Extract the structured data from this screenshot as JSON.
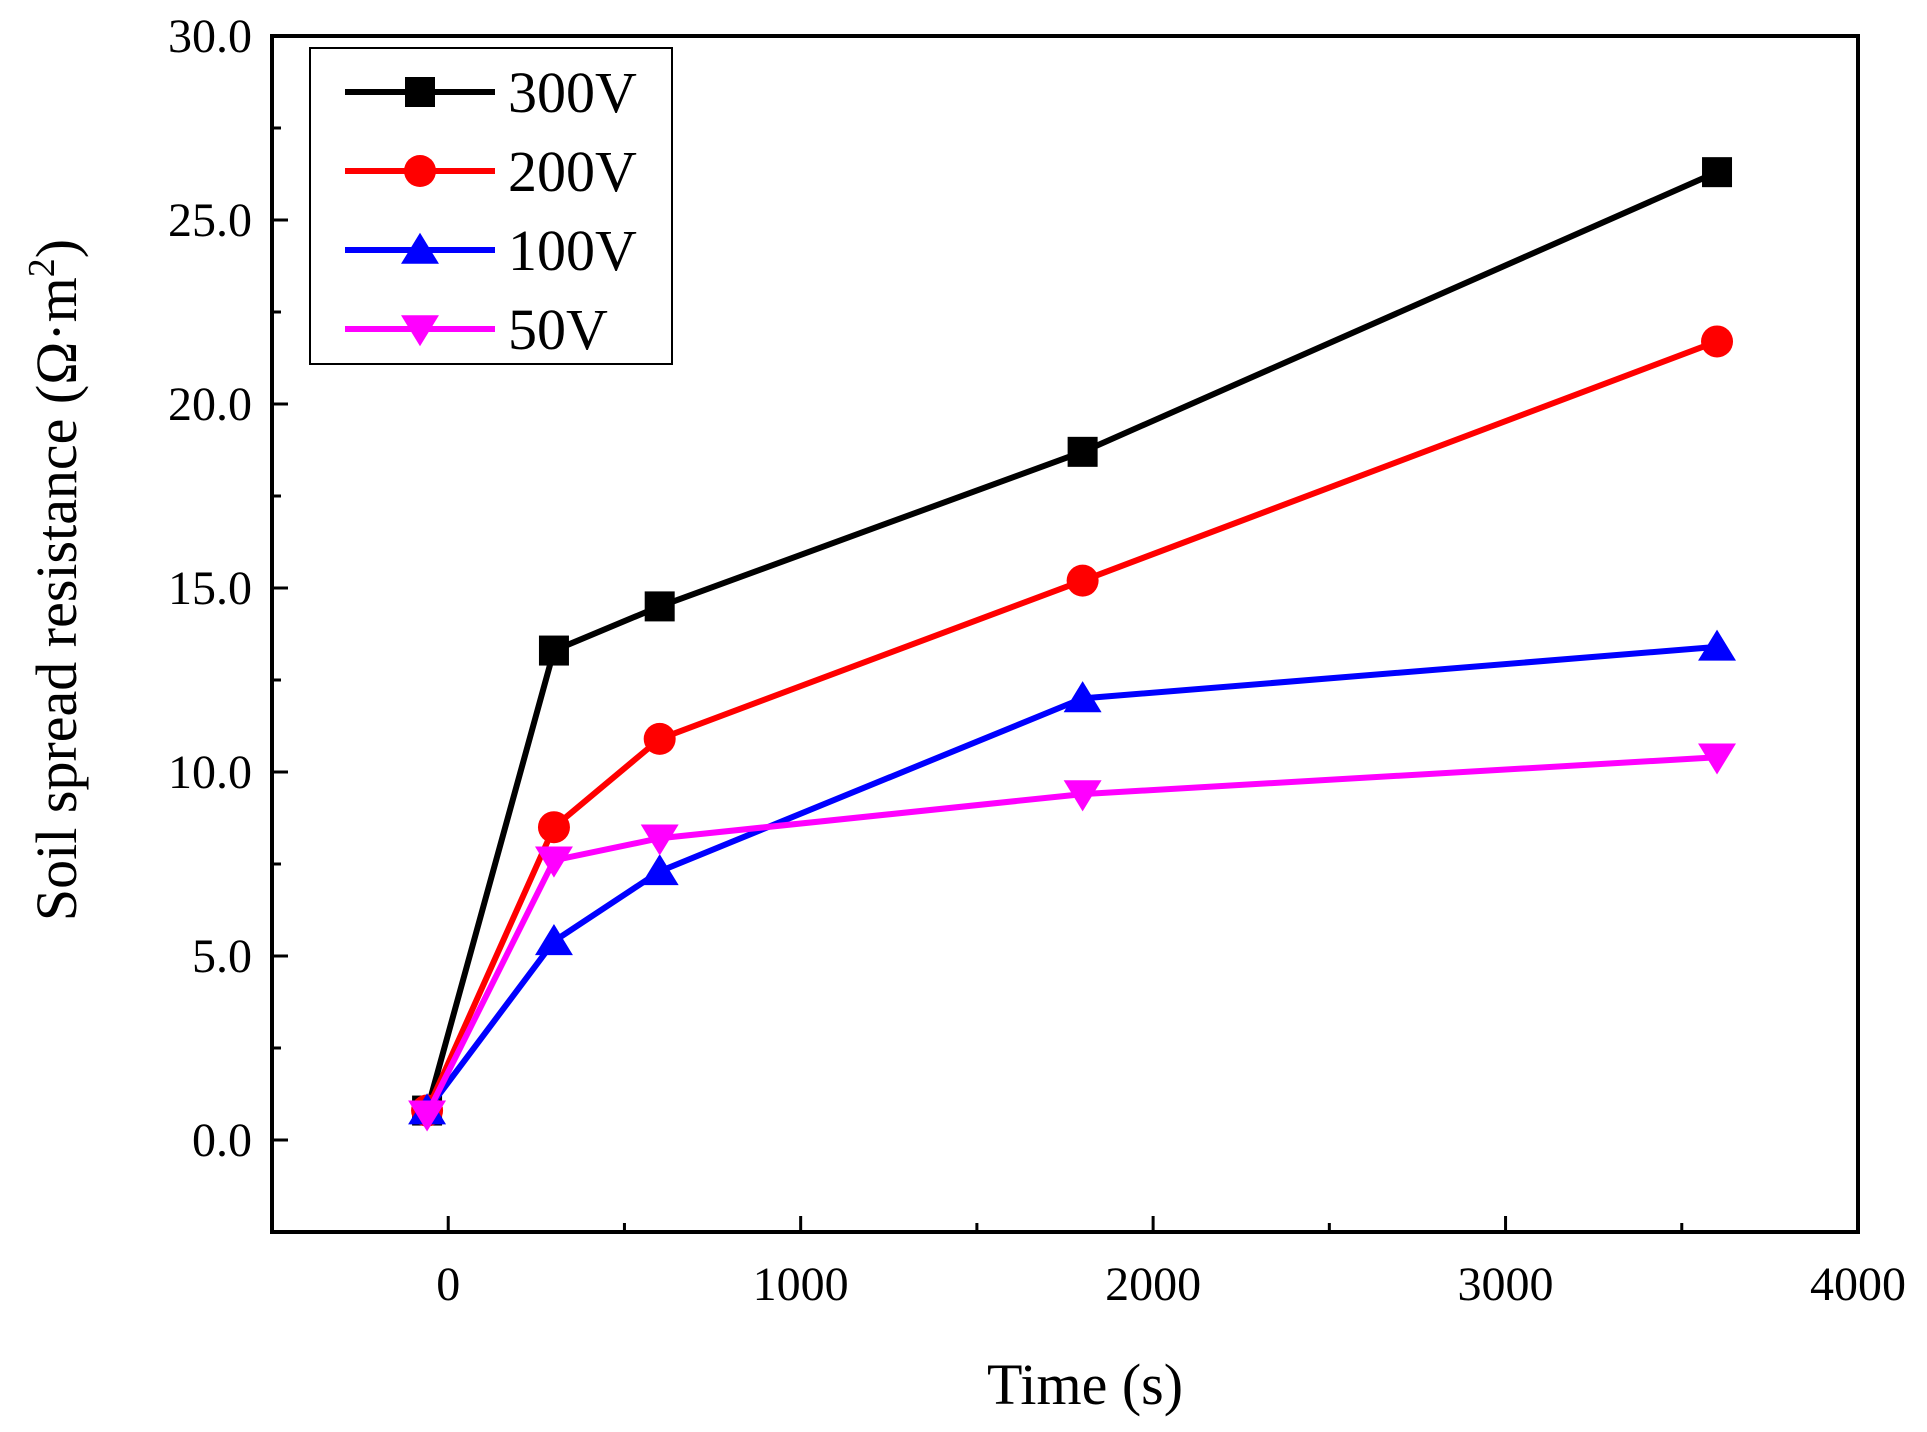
{
  "chart_data": {
    "type": "line",
    "title": "",
    "xlabel": "Time (s)",
    "ylabel_main": "Soil spread resistance (Ω·m",
    "ylabel_sup": "2",
    "ylabel_close": ")",
    "xlim": [
      -500,
      4000
    ],
    "ylim": [
      -2.5,
      30
    ],
    "xticks": [
      0,
      1000,
      2000,
      3000,
      4000
    ],
    "xtick_labels": [
      "0",
      "1000",
      "2000",
      "3000",
      "4000"
    ],
    "yticks": [
      0,
      5,
      10,
      15,
      20,
      25,
      30
    ],
    "ytick_labels": [
      "0.0",
      "5.0",
      "10.0",
      "15.0",
      "20.0",
      "25.0",
      "30.0"
    ],
    "x": [
      -60,
      300,
      600,
      1800,
      3600
    ],
    "legend_position": "top-left",
    "series": [
      {
        "name": "300V",
        "color": "#000000",
        "marker": "square",
        "values": [
          0.8,
          13.3,
          14.5,
          18.7,
          26.3
        ]
      },
      {
        "name": "200V",
        "color": "#ff0000",
        "marker": "circle",
        "values": [
          0.8,
          8.5,
          10.9,
          15.2,
          21.7
        ]
      },
      {
        "name": "100V",
        "color": "#0000ff",
        "marker": "triangle-up",
        "values": [
          0.8,
          5.4,
          7.3,
          12.0,
          13.4
        ]
      },
      {
        "name": "50V",
        "color": "#ff00ff",
        "marker": "triangle-down",
        "values": [
          0.7,
          7.6,
          8.2,
          9.4,
          10.4
        ]
      }
    ]
  }
}
